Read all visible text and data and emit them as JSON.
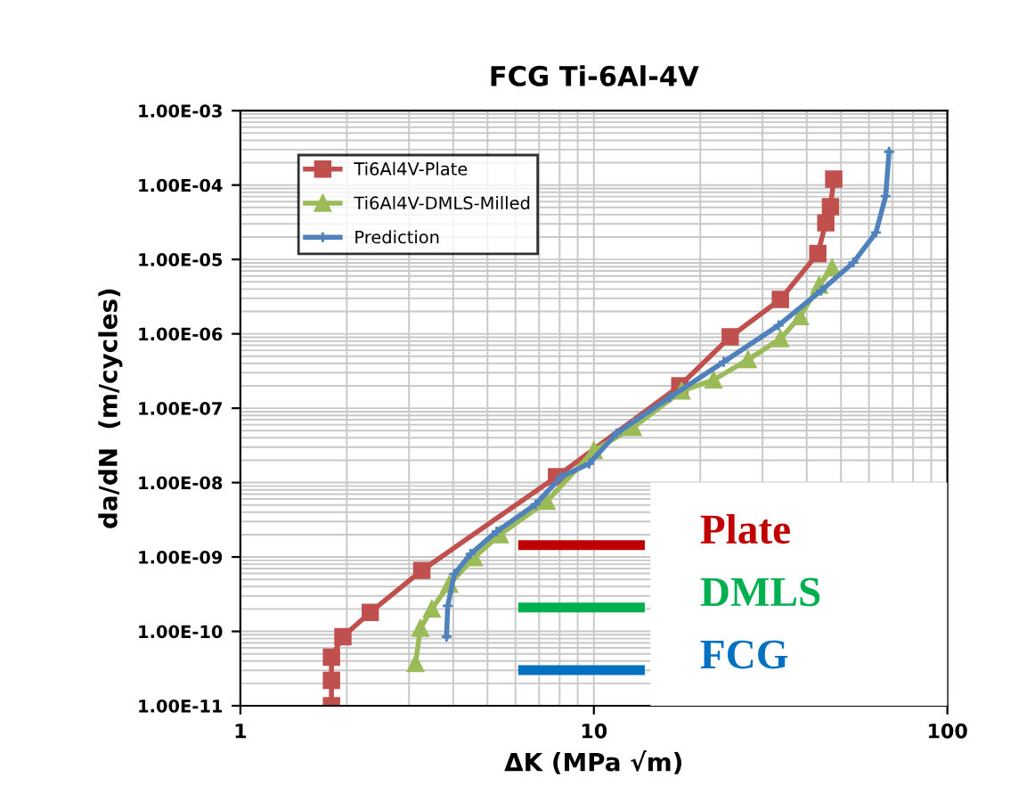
{
  "chart_data": {
    "type": "line",
    "title": "FCG Ti-6Al-4V",
    "xlabel": "ΔK (MPa √m)",
    "ylabel": "da/dN  (m/cycles)",
    "log": "xy",
    "grid": true,
    "legend": "top left",
    "xlim": [
      1,
      100
    ],
    "xticks": [
      1,
      10,
      100
    ],
    "ylim": [
      1e-11,
      0.001
    ],
    "yticks": [
      {
        "value": 1e-11,
        "label": "1.00E-11"
      },
      {
        "value": 1e-10,
        "label": "1.00E-10"
      },
      {
        "value": 1e-09,
        "label": "1.00E-09"
      },
      {
        "value": 1e-08,
        "label": "1.00E-08"
      },
      {
        "value": 1e-07,
        "label": "1.00E-07"
      },
      {
        "value": 1e-06,
        "label": "1.00E-06"
      },
      {
        "value": 1e-05,
        "label": "1.00E-05"
      },
      {
        "value": 0.0001,
        "label": "1.00E-04"
      },
      {
        "value": 0.001,
        "label": "1.00E-03"
      }
    ],
    "series": [
      {
        "name": "Ti6Al4V-Plate",
        "color": "#c0504d",
        "marker": "square",
        "x": [
          1.81,
          1.81,
          1.81,
          1.95,
          2.33,
          3.26,
          7.84,
          17.5,
          24.3,
          33.7,
          43,
          45.3,
          46.7,
          47.7
        ],
        "values": [
          1e-11,
          2.2e-11,
          4.5e-11,
          8.5e-11,
          1.8e-10,
          6.6e-10,
          1.2e-08,
          2e-07,
          9.1e-07,
          2.9e-06,
          1.2e-05,
          3.1e-05,
          5.1e-05,
          0.00012
        ]
      },
      {
        "name": "Ti6Al4V-DMLS-Milled",
        "color": "#9bbb59",
        "marker": "triangle",
        "x": [
          3.13,
          3.23,
          3.48,
          3.9,
          4.58,
          5.42,
          7.36,
          10,
          12.9,
          17.7,
          21.8,
          27.3,
          33.7,
          38.3,
          43.4,
          47.2
        ],
        "values": [
          3.7e-11,
          1.1e-10,
          2e-10,
          4.3e-10,
          9.8e-10,
          2e-09,
          5.6e-09,
          2.7e-08,
          5.5e-08,
          1.7e-07,
          2.4e-07,
          4.5e-07,
          8.6e-07,
          1.7e-06,
          4.5e-06,
          7.7e-06
        ]
      },
      {
        "name": "Prediction",
        "color": "#4f81bd",
        "marker": "cross",
        "x": [
          3.83,
          3.86,
          4.03,
          4.48,
          5.31,
          6.84,
          8.09,
          9.7,
          11.6,
          16.4,
          23.3,
          33.3,
          43.9,
          54.2,
          62.8,
          66.9,
          68.4
        ],
        "values": [
          8.5e-11,
          2.2e-10,
          5.9e-10,
          1.1e-09,
          2.2e-09,
          5.1e-09,
          1.2e-08,
          1.8e-08,
          4.6e-08,
          1.4e-07,
          4.2e-07,
          1.3e-06,
          3.8e-06,
          9.1e-06,
          2.3e-05,
          7.1e-05,
          0.00028
        ]
      }
    ],
    "annotations": [
      "Plate",
      "DMLS",
      "FCG"
    ]
  }
}
